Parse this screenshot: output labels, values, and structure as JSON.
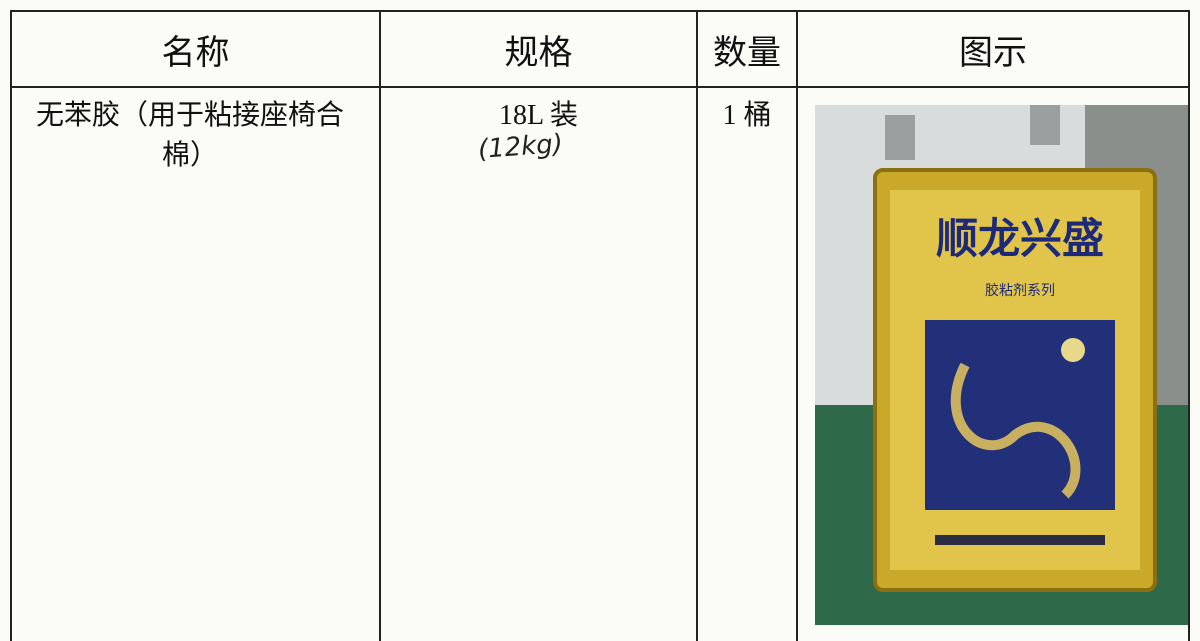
{
  "table": {
    "headers": [
      "名称",
      "规格",
      "数量",
      "图示"
    ],
    "rows": [
      [
        "无苯胶（用于粘接座椅合棉）",
        "18L 装",
        "1 桶"
      ]
    ]
  },
  "handwritten_note": "(12kg)",
  "photo": {
    "brand": "顺龙兴盛",
    "subtitle": "胶粘剂系列"
  }
}
